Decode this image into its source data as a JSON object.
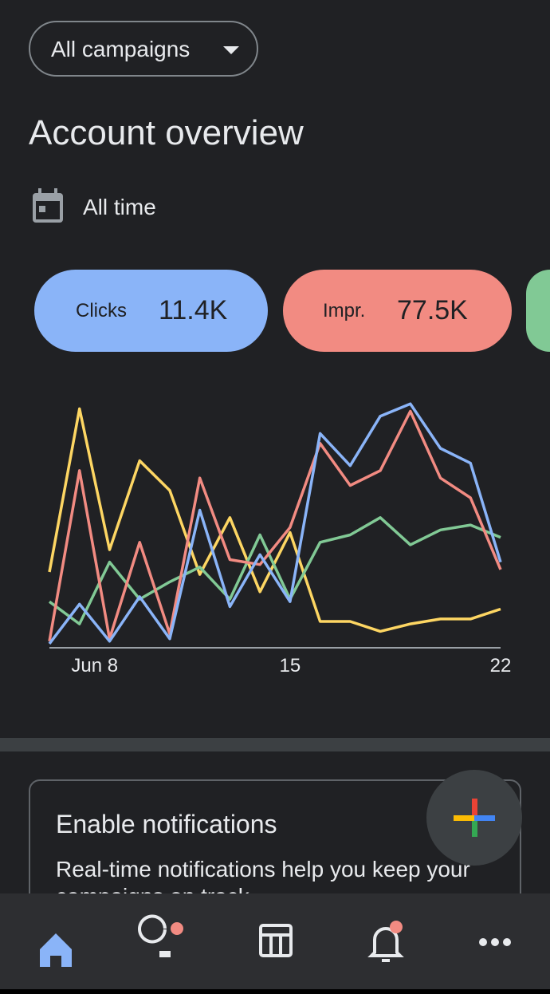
{
  "header": {
    "dropdown": "All campaigns",
    "title": "Account overview",
    "date_range": "All time"
  },
  "chips": [
    {
      "label": "Clicks",
      "value": "11.4K"
    },
    {
      "label": "Impr.",
      "value": "77.5K"
    }
  ],
  "chart_data": {
    "type": "line",
    "categories": [
      null,
      "Jun 8",
      null,
      null,
      null,
      null,
      null,
      null,
      "15",
      null,
      null,
      null,
      null,
      null,
      null,
      "22"
    ],
    "ylim": [
      0,
      100
    ],
    "series": [
      {
        "color": "#fdd663",
        "values": [
          30,
          96,
          39,
          75,
          63,
          29,
          52,
          22,
          46,
          10,
          10,
          6,
          9,
          11,
          11,
          15
        ]
      },
      {
        "color": "#81c995",
        "values": [
          18,
          9,
          34,
          19,
          26,
          32,
          19,
          45,
          19,
          42,
          45,
          52,
          41,
          47,
          49,
          44
        ]
      },
      {
        "color": "#f28b82",
        "values": [
          2,
          71,
          3,
          42,
          5,
          68,
          35,
          33,
          48,
          82,
          65,
          71,
          95,
          68,
          60,
          31
        ]
      },
      {
        "color": "#8ab4f8",
        "values": [
          1,
          17,
          2,
          20,
          3,
          55,
          16,
          37,
          18,
          86,
          73,
          93,
          98,
          80,
          74,
          34
        ]
      }
    ]
  },
  "card": {
    "title": "Enable notifications",
    "body": "Real-time notifications help you keep your campaigns on track"
  }
}
